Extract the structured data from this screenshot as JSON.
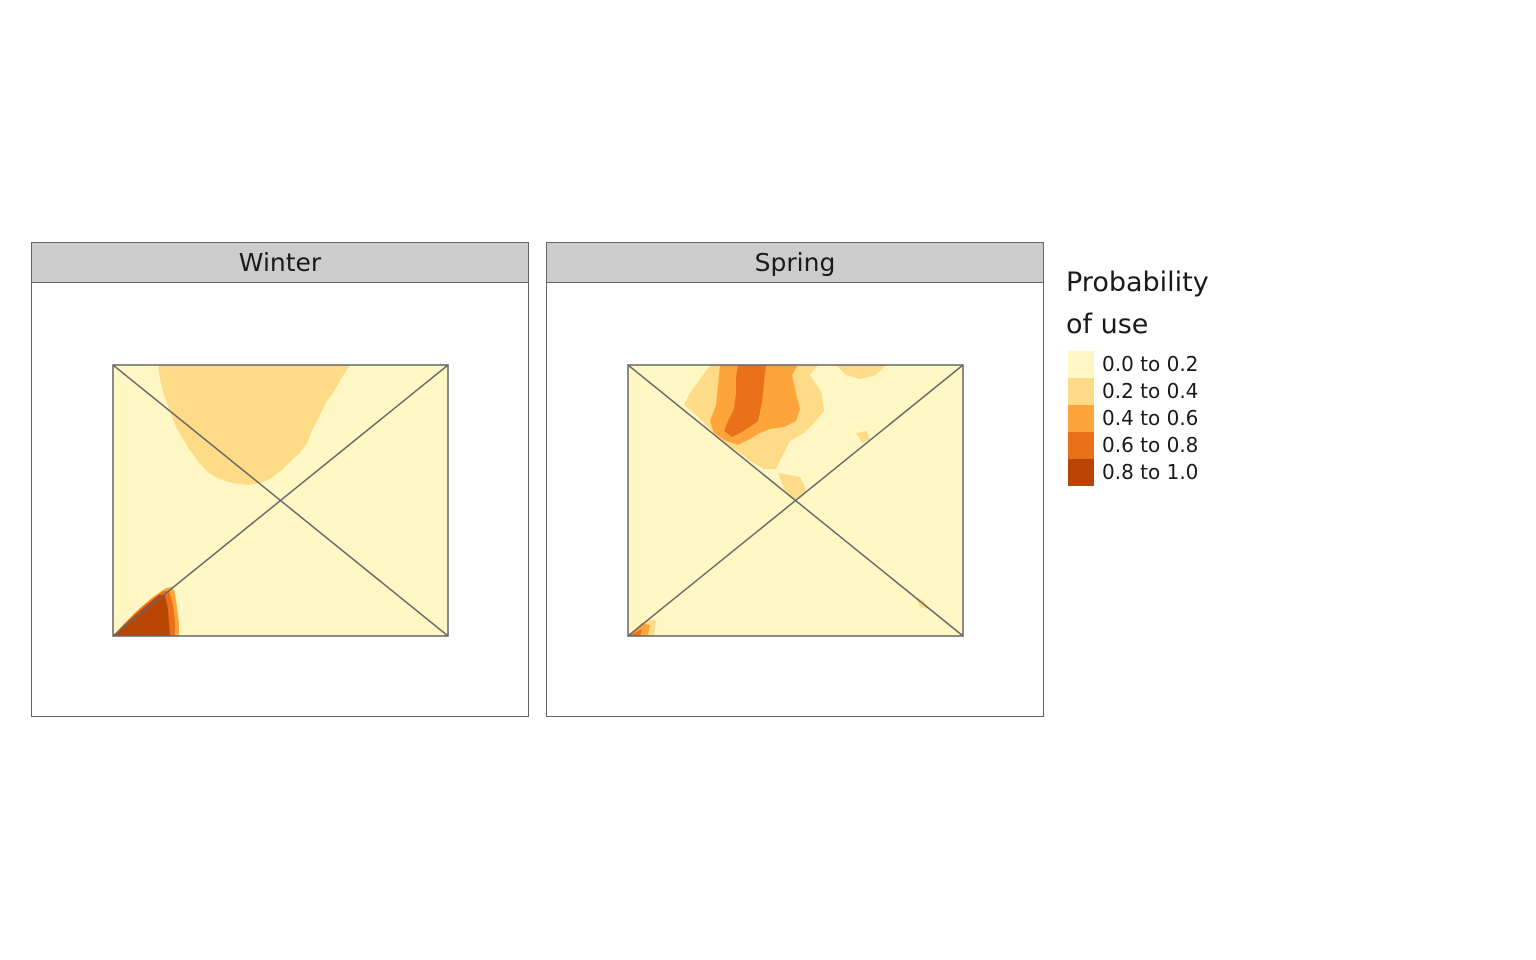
{
  "facets": [
    {
      "label": "Winter"
    },
    {
      "label": "Spring"
    }
  ],
  "legend": {
    "title_line1": "Probability",
    "title_line2": "of use",
    "items": [
      {
        "label": "0.0 to 0.2",
        "color": "#FFF7C4"
      },
      {
        "label": "0.2 to 0.4",
        "color": "#FEDB86"
      },
      {
        "label": "0.4 to 0.6",
        "color": "#FDA53A"
      },
      {
        "label": "0.6 to 0.8",
        "color": "#EB701A"
      },
      {
        "label": "0.8 to 1.0",
        "color": "#BA4502"
      }
    ]
  },
  "colors": {
    "class_0": "#FFF7C4",
    "class_1": "#FEDB86",
    "class_2": "#FDA53A",
    "class_3": "#EB701A",
    "class_4": "#BA4502",
    "outline": "#666666"
  }
}
